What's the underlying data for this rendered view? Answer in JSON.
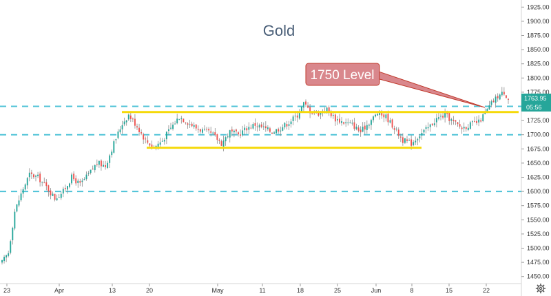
{
  "chart_data": {
    "type": "candlestick",
    "title": "Gold",
    "ylim": [
      1437.5,
      1937.5
    ],
    "x_tick_labels": [
      "23",
      "Apr",
      "13",
      "20",
      "May",
      "11",
      "18",
      "25",
      "Jun",
      "8",
      "15",
      "22"
    ],
    "y_tick_labels": [
      1450,
      1475,
      1500,
      1525,
      1550,
      1575,
      1600,
      1625,
      1650,
      1675,
      1700,
      1725,
      1750,
      1775,
      1800,
      1825,
      1850,
      1875,
      1900,
      1925
    ],
    "grid": false,
    "dashed_levels": [
      1600,
      1700,
      1750
    ],
    "channel_lines": [
      {
        "from_label": "13",
        "to_label": "22",
        "price": 1740
      },
      {
        "from_label": "20",
        "to_label": "8",
        "price": 1677
      }
    ],
    "annotation": {
      "text": "1750 Level",
      "target_price": 1748,
      "target_label": "22"
    },
    "last_price": "1763.95",
    "countdown": "05:56",
    "close_path": [
      {
        "bar": 0,
        "price": 1475
      },
      {
        "bar": 3,
        "price": 1492
      },
      {
        "bar": 6,
        "price": 1565
      },
      {
        "bar": 10,
        "price": 1605
      },
      {
        "bar": 13,
        "price": 1630
      },
      {
        "bar": 17,
        "price": 1625
      },
      {
        "bar": 21,
        "price": 1608
      },
      {
        "bar": 25,
        "price": 1588
      },
      {
        "bar": 29,
        "price": 1600
      },
      {
        "bar": 33,
        "price": 1625
      },
      {
        "bar": 37,
        "price": 1612
      },
      {
        "bar": 41,
        "price": 1630
      },
      {
        "bar": 45,
        "price": 1650
      },
      {
        "bar": 49,
        "price": 1645
      },
      {
        "bar": 53,
        "price": 1685
      },
      {
        "bar": 57,
        "price": 1720
      },
      {
        "bar": 60,
        "price": 1735
      },
      {
        "bar": 64,
        "price": 1715
      },
      {
        "bar": 68,
        "price": 1690
      },
      {
        "bar": 72,
        "price": 1678
      },
      {
        "bar": 76,
        "price": 1690
      },
      {
        "bar": 80,
        "price": 1712
      },
      {
        "bar": 84,
        "price": 1732
      },
      {
        "bar": 88,
        "price": 1722
      },
      {
        "bar": 92,
        "price": 1712
      },
      {
        "bar": 96,
        "price": 1706
      },
      {
        "bar": 100,
        "price": 1700
      },
      {
        "bar": 104,
        "price": 1685
      },
      {
        "bar": 108,
        "price": 1705
      },
      {
        "bar": 112,
        "price": 1700
      },
      {
        "bar": 116,
        "price": 1712
      },
      {
        "bar": 120,
        "price": 1718
      },
      {
        "bar": 124,
        "price": 1712
      },
      {
        "bar": 128,
        "price": 1705
      },
      {
        "bar": 132,
        "price": 1712
      },
      {
        "bar": 136,
        "price": 1722
      },
      {
        "bar": 140,
        "price": 1735
      },
      {
        "bar": 143,
        "price": 1755
      },
      {
        "bar": 146,
        "price": 1742
      },
      {
        "bar": 150,
        "price": 1738
      },
      {
        "bar": 154,
        "price": 1745
      },
      {
        "bar": 158,
        "price": 1728
      },
      {
        "bar": 162,
        "price": 1722
      },
      {
        "bar": 166,
        "price": 1718
      },
      {
        "bar": 170,
        "price": 1705
      },
      {
        "bar": 174,
        "price": 1722
      },
      {
        "bar": 178,
        "price": 1738
      },
      {
        "bar": 182,
        "price": 1732
      },
      {
        "bar": 186,
        "price": 1712
      },
      {
        "bar": 190,
        "price": 1690
      },
      {
        "bar": 194,
        "price": 1685
      },
      {
        "bar": 198,
        "price": 1700
      },
      {
        "bar": 202,
        "price": 1712
      },
      {
        "bar": 206,
        "price": 1728
      },
      {
        "bar": 210,
        "price": 1735
      },
      {
        "bar": 214,
        "price": 1722
      },
      {
        "bar": 218,
        "price": 1712
      },
      {
        "bar": 222,
        "price": 1718
      },
      {
        "bar": 226,
        "price": 1722
      },
      {
        "bar": 229,
        "price": 1738
      },
      {
        "bar": 232,
        "price": 1755
      },
      {
        "bar": 235,
        "price": 1768
      },
      {
        "bar": 238,
        "price": 1775
      },
      {
        "bar": 240,
        "price": 1764
      }
    ]
  },
  "ui": {
    "settings_icon": "gear-icon",
    "colors": {
      "up": "#26a69a",
      "down": "#ef5350",
      "wick": "#8a8a8a",
      "dashed": "#4fc3d7",
      "channel": "#f5d90a",
      "callout_fill": "#d9878c",
      "callout_border": "#c0392b",
      "price_label": "#26a69a",
      "axis_text": "#333333",
      "title": "#4a5f78"
    }
  }
}
